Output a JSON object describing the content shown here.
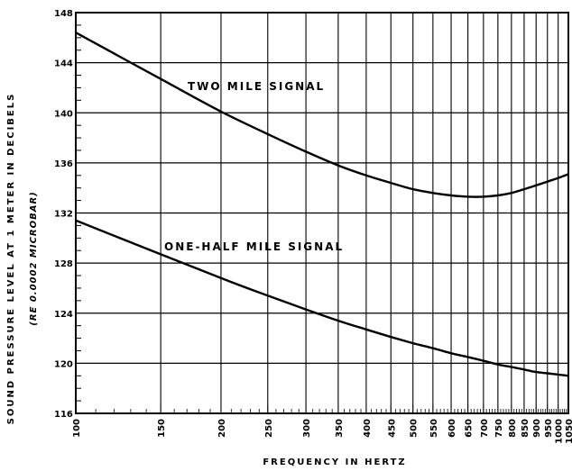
{
  "chart_data": {
    "type": "line",
    "xlabel": "FREQUENCY IN HERTZ",
    "ylabel": "SOUND PRESSURE LEVEL AT 1 METER IN DECIBELS",
    "ylabel_sub": "(RE 0.0002 MICROBAR)",
    "xscale": "log",
    "xlim": [
      100,
      1050
    ],
    "ylim": [
      116,
      148
    ],
    "x_tick_labels": [
      "100",
      "150",
      "200",
      "250",
      "300",
      "350",
      "400",
      "450",
      "500",
      "550",
      "600",
      "650",
      "700",
      "750",
      "800",
      "850",
      "900",
      "950",
      "1000",
      "1050"
    ],
    "y_tick_labels": [
      "116",
      "120",
      "124",
      "128",
      "132",
      "136",
      "140",
      "144",
      "148"
    ],
    "grid": true,
    "series": [
      {
        "name": "TWO MILE SIGNAL",
        "x": [
          100,
          150,
          200,
          250,
          300,
          350,
          400,
          450,
          500,
          550,
          600,
          650,
          700,
          750,
          800,
          850,
          900,
          950,
          1000,
          1050
        ],
        "y": [
          146.4,
          142.7,
          140.1,
          138.3,
          136.9,
          135.8,
          135.0,
          134.4,
          133.9,
          133.6,
          133.4,
          133.3,
          133.3,
          133.4,
          133.6,
          133.9,
          134.2,
          134.5,
          134.8,
          135.1
        ]
      },
      {
        "name": "ONE-HALF MILE SIGNAL",
        "x": [
          100,
          150,
          200,
          250,
          300,
          350,
          400,
          450,
          500,
          550,
          600,
          650,
          700,
          750,
          800,
          850,
          900,
          950,
          1000,
          1050
        ],
        "y": [
          131.4,
          128.7,
          126.8,
          125.4,
          124.3,
          123.4,
          122.7,
          122.1,
          121.6,
          121.2,
          120.8,
          120.5,
          120.2,
          119.9,
          119.7,
          119.5,
          119.3,
          119.2,
          119.1,
          119.0
        ]
      }
    ]
  }
}
